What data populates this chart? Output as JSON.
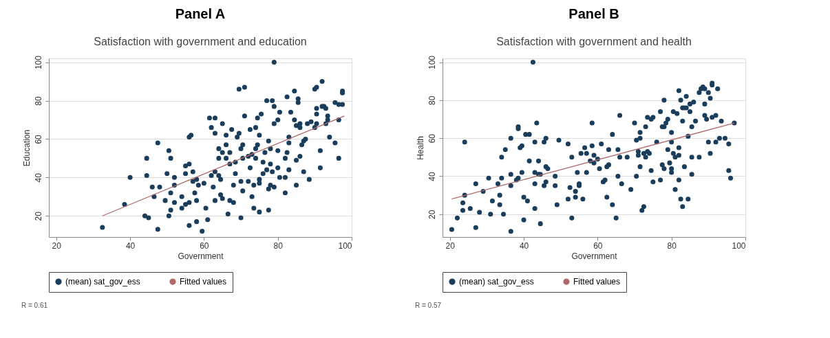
{
  "chart_data": [
    {
      "type": "scatter",
      "title": "Panel A",
      "subtitle": "Satisfaction with government and education",
      "xlabel": "Government",
      "ylabel": "Education",
      "xlim": [
        18,
        100
      ],
      "ylim": [
        9,
        102
      ],
      "xticks": [
        20,
        40,
        60,
        80,
        100
      ],
      "yticks": [
        20,
        40,
        60,
        80,
        100
      ],
      "grid": "y",
      "legend": "bottom",
      "annotations": [
        "R = 0.61"
      ],
      "series": [
        {
          "name": "(mean) sat_gov_ess",
          "marker": "circle",
          "color": "#1a3d5c",
          "x": [
            32.5,
            38.5,
            40,
            44,
            45,
            44.5,
            44.5,
            46,
            46.5,
            47.5,
            47.5,
            48,
            49.5,
            50,
            50.5,
            51,
            50.5,
            51,
            51,
            52,
            52,
            52,
            54,
            54,
            55,
            55,
            55,
            56,
            56,
            56,
            56,
            56.5,
            57,
            57,
            57.5,
            58,
            58,
            58,
            58.5,
            59.5,
            60,
            60.5,
            61,
            61.5,
            62,
            62,
            62.5,
            63,
            63,
            63,
            63,
            64,
            64,
            64,
            64.5,
            64.5,
            65,
            65,
            65,
            66,
            66,
            66,
            66.5,
            67,
            67,
            67,
            67.5,
            68,
            68,
            68.5,
            68.5,
            69,
            69.5,
            69.5,
            70,
            70,
            70,
            70.5,
            70.5,
            70.5,
            71,
            71,
            72,
            72,
            72.5,
            72.5,
            73,
            73,
            73.5,
            73.5,
            74,
            74,
            74,
            74.5,
            74.5,
            75,
            75,
            75,
            75,
            75.5,
            76,
            76,
            76.5,
            77,
            77,
            77.5,
            77.5,
            77.5,
            78,
            78,
            78,
            78.5,
            78.5,
            79,
            79,
            79,
            80,
            80,
            80,
            80.5,
            80.5,
            82,
            82,
            82,
            82.5,
            82.5,
            83,
            83,
            83,
            83.5,
            84.5,
            84.5,
            85,
            85,
            85,
            85.5,
            85.5,
            86,
            86,
            86,
            86.5,
            87,
            87,
            87.5,
            88,
            88.5,
            89,
            90,
            90,
            90.5,
            90.5,
            90.5,
            90.5,
            91.5,
            91.5,
            92,
            92,
            92.5,
            93,
            93,
            93.5,
            93.5,
            94,
            95.5,
            95.5,
            96.5,
            96.5,
            96.5,
            97.5,
            97.5,
            97.5,
            79
          ],
          "values": [
            14,
            26,
            40,
            20,
            19,
            41,
            50,
            35,
            30,
            13,
            58,
            35,
            28,
            42,
            20,
            23,
            54,
            50,
            32,
            40,
            36,
            27,
            24,
            30,
            26,
            42,
            46,
            27,
            15,
            47,
            61,
            62,
            38,
            43,
            32,
            28,
            17,
            39,
            36,
            12,
            37,
            24,
            18,
            71,
            41,
            66,
            35,
            28,
            63,
            71,
            43,
            55,
            50,
            41,
            39,
            31,
            68,
            53,
            29,
            62,
            57,
            50,
            21,
            47,
            53,
            28,
            65,
            27,
            36,
            42,
            48,
            61,
            63,
            86,
            19,
            38,
            55,
            33,
            57,
            50,
            87,
            72,
            38,
            51,
            45,
            65,
            52,
            30,
            24,
            36,
            55,
            50,
            66,
            57,
            71,
            62,
            37,
            39,
            22,
            73,
            42,
            48,
            53,
            80,
            44,
            59,
            23,
            34,
            55,
            36,
            47,
            80,
            43,
            68,
            77,
            35,
            54,
            45,
            70,
            74,
            40,
            40,
            32,
            50,
            53,
            82,
            61,
            58,
            44,
            74,
            85,
            70,
            67,
            36,
            49,
            81,
            79,
            51,
            68,
            66,
            57,
            43,
            59,
            60,
            68,
            39,
            69,
            86,
            66,
            87,
            76,
            73,
            68,
            54,
            45,
            90,
            77,
            77,
            68,
            76,
            72,
            70,
            61,
            58,
            79,
            78,
            50,
            70,
            85,
            84,
            78,
            100
          ]
        },
        {
          "name": "Fitted values",
          "type": "line",
          "line_style": "solid",
          "marker": "none",
          "color": "#b06a6a",
          "x": [
            32.5,
            98
          ],
          "values": [
            20,
            72
          ]
        }
      ]
    },
    {
      "type": "scatter",
      "title": "Panel B",
      "subtitle": "Satisfaction with government and health",
      "xlabel": "Government",
      "ylabel": "Health",
      "xlim": [
        18,
        100
      ],
      "ylim": [
        8,
        102
      ],
      "xticks": [
        20,
        40,
        60,
        80,
        100
      ],
      "yticks": [
        20,
        40,
        60,
        80,
        100
      ],
      "grid": "y",
      "legend": "bottom",
      "annotations": [
        "R = 0.57"
      ],
      "series": [
        {
          "name": "(mean) sat_gov_ess",
          "marker": "circle",
          "color": "#1a3d5c",
          "x": [
            20.5,
            22,
            23.5,
            23.5,
            24,
            24,
            25.5,
            27,
            27,
            28,
            29,
            30.5,
            31,
            31.5,
            33,
            33.5,
            33.5,
            34,
            34,
            34.5,
            35,
            36.5,
            36.5,
            36.5,
            36.5,
            38,
            38.5,
            38.5,
            38.5,
            39,
            39.5,
            39.5,
            40,
            40,
            40.5,
            41,
            41.5,
            41.5,
            42.5,
            43,
            43,
            43,
            43,
            43.5,
            44,
            44,
            44.5,
            44.5,
            45.5,
            45.5,
            46,
            46,
            46,
            46.5,
            48.5,
            48.5,
            49,
            49.5,
            52,
            52,
            52.5,
            53,
            53,
            54,
            54,
            54.5,
            55,
            55,
            55.5,
            56,
            56.5,
            57,
            57,
            58,
            58.5,
            58.5,
            59,
            59,
            60,
            60.5,
            61,
            61.5,
            62,
            62.5,
            62.5,
            63,
            63,
            64,
            64,
            65,
            65.5,
            65.5,
            66,
            66,
            66.5,
            68,
            69,
            70,
            70.5,
            70.5,
            71,
            71,
            71.5,
            71.5,
            71.5,
            72,
            72.5,
            72.5,
            73,
            73,
            73.5,
            73.5,
            74,
            74.5,
            74.5,
            75,
            75,
            76,
            77,
            77,
            77.5,
            77.5,
            78,
            78,
            78,
            78.5,
            79,
            79,
            79.5,
            80,
            80,
            80,
            80,
            80.5,
            80.5,
            81,
            81,
            81.5,
            82,
            82,
            82,
            82,
            82.5,
            82.5,
            83,
            83,
            83,
            83.5,
            83.5,
            84,
            84,
            84.5,
            84.5,
            85,
            85,
            85.5,
            85.5,
            85.5,
            86,
            86.5,
            87.5,
            87.5,
            88,
            88.5,
            89,
            89,
            89,
            89.5,
            90,
            90,
            90.5,
            90.5,
            91,
            91,
            91,
            92,
            92,
            92.5,
            93,
            93.5,
            94.5,
            95.5,
            95.5,
            96,
            97
          ],
          "values": [
            12,
            18,
            22,
            26,
            58,
            30,
            23,
            13,
            36,
            21,
            32,
            39,
            20,
            27,
            36,
            30,
            25,
            39,
            50,
            20,
            54,
            60,
            35,
            41,
            11,
            38,
            39,
            65,
            66,
            55,
            56,
            42,
            29,
            17,
            62,
            27,
            48,
            62,
            100,
            42,
            36,
            58,
            23,
            68,
            48,
            41,
            15,
            41,
            58,
            35,
            60,
            37,
            45,
            44,
            35,
            40,
            25,
            59,
            57,
            28,
            34,
            50,
            18,
            32,
            29,
            42,
            35,
            36,
            52,
            28,
            55,
            52,
            42,
            48,
            68,
            56,
            51,
            47,
            49,
            44,
            57,
            37,
            38,
            29,
            45,
            46,
            54,
            25,
            62,
            18,
            40,
            54,
            50,
            72,
            36,
            50,
            33,
            68,
            59,
            40,
            51,
            53,
            45,
            60,
            63,
            22,
            24,
            52,
            66,
            50,
            71,
            53,
            52,
            70,
            43,
            37,
            71,
            58,
            74,
            38,
            46,
            66,
            44,
            66,
            80,
            68,
            54,
            70,
            47,
            58,
            63,
            44,
            42,
            52,
            74,
            50,
            33,
            73,
            85,
            51,
            55,
            38,
            80,
            28,
            24,
            69,
            76,
            76,
            45,
            82,
            76,
            61,
            28,
            78,
            74,
            41,
            50,
            66,
            79,
            69,
            84,
            50,
            86,
            87,
            72,
            78,
            86,
            70,
            84,
            58,
            81,
            52,
            88,
            89,
            71,
            58,
            72,
            86,
            60,
            69,
            60,
            43,
            57,
            39,
            68
          ]
        },
        {
          "name": "Fitted values",
          "type": "line",
          "line_style": "solid",
          "marker": "none",
          "color": "#b06a6a",
          "x": [
            20.5,
            97
          ],
          "values": [
            28,
            68
          ]
        }
      ]
    }
  ]
}
